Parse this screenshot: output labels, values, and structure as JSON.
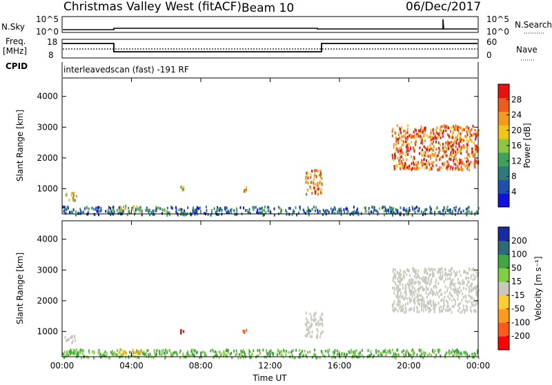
{
  "header": {
    "site": "Christmas Valley West (fitACF)",
    "beam": "Beam 10",
    "date": "06/Dec/2017"
  },
  "strips": {
    "nsky_label": "N.Sky",
    "nsky_ticks": [
      "10^5",
      "10^0"
    ],
    "nsearch_label": "N.Search",
    "nsearch_ticks": [
      "10^5",
      "10^0"
    ],
    "freq_label_1": "Freq.",
    "freq_label_2": "[MHz]",
    "freq_ticks": [
      "18",
      "8"
    ],
    "nave_label": "Nave",
    "nave_ticks": [
      "60",
      "0"
    ],
    "cpid_label": "CPID",
    "cpid_text": "interleavedscan (fast) -191 RF"
  },
  "colors": {
    "power_scale": [
      "#1010e0",
      "#1f4fb0",
      "#2e7a7a",
      "#3fa45a",
      "#8dc63f",
      "#f2c417",
      "#f59a1e",
      "#f25a1a",
      "#e81010"
    ],
    "velocity_scale": [
      "#ff0000",
      "#ff5a1a",
      "#ff9a1a",
      "#ffcc33",
      "#c8c8be",
      "#7fcf3f",
      "#3fa640",
      "#2f6a7a",
      "#1a2aa0"
    ],
    "ground_scatter": "#c8c8be"
  },
  "chart_data": [
    {
      "type": "heatmap",
      "title": "",
      "xlabel": "Time UT",
      "ylabel": "Slant Range [km]",
      "x_ticks": [
        "00:00",
        "04:00",
        "08:00",
        "12:00",
        "16:00",
        "20:00",
        "00:00"
      ],
      "xlim_hours": [
        0,
        24
      ],
      "y_ticks": [
        1000,
        2000,
        3000,
        4000
      ],
      "ylim": [
        180,
        4600
      ],
      "colorbar": {
        "label": "Power [dB]",
        "ticks": [
          4,
          8,
          12,
          16,
          20,
          24,
          28
        ],
        "range": [
          0,
          32
        ]
      },
      "features": [
        {
          "label": "near-range band",
          "t_start": 0.0,
          "t_end": 24.0,
          "r_start": 180,
          "r_end": 450,
          "value": 8
        },
        {
          "label": "early echo",
          "t_start": 0.1,
          "t_end": 0.8,
          "r_start": 650,
          "r_end": 900,
          "value": 20
        },
        {
          "label": "echo 04:00",
          "t_start": 3.2,
          "t_end": 4.5,
          "r_start": 280,
          "r_end": 480,
          "value": 18
        },
        {
          "label": "echo 06:50",
          "t_start": 6.8,
          "t_end": 7.0,
          "r_start": 950,
          "r_end": 1100,
          "value": 20
        },
        {
          "label": "echo 10:30",
          "t_start": 10.4,
          "t_end": 10.6,
          "r_start": 950,
          "r_end": 1100,
          "value": 22
        },
        {
          "label": "echo 14:30",
          "t_start": 14.0,
          "t_end": 15.0,
          "r_start": 850,
          "r_end": 1650,
          "value": 24
        },
        {
          "label": "far-range patch",
          "t_start": 19.0,
          "t_end": 24.0,
          "r_start": 1650,
          "r_end": 3100,
          "value": 26
        }
      ]
    },
    {
      "type": "heatmap",
      "title": "",
      "xlabel": "Time UT",
      "ylabel": "Slant Range [km]",
      "x_ticks": [
        "00:00",
        "04:00",
        "08:00",
        "12:00",
        "16:00",
        "20:00",
        "00:00"
      ],
      "xlim_hours": [
        0,
        24
      ],
      "y_ticks": [
        1000,
        2000,
        3000,
        4000
      ],
      "ylim": [
        180,
        4600
      ],
      "colorbar": {
        "label": "Velocity [m s⁻¹]",
        "ticks": [
          "200",
          "100",
          "50",
          "15",
          "-15",
          "-50",
          "-100",
          "-200"
        ]
      },
      "features": [
        {
          "label": "near-range band",
          "t_start": 0.0,
          "t_end": 24.0,
          "r_start": 180,
          "r_end": 450,
          "value": 50
        },
        {
          "label": "early ground scatter",
          "t_start": 0.1,
          "t_end": 0.8,
          "r_start": 650,
          "r_end": 900,
          "value": 0
        },
        {
          "label": "echo 04:00",
          "t_start": 3.2,
          "t_end": 4.5,
          "r_start": 280,
          "r_end": 480,
          "value": -50
        },
        {
          "label": "echo 06:50",
          "t_start": 6.8,
          "t_end": 7.0,
          "r_start": 950,
          "r_end": 1100,
          "value": -200
        },
        {
          "label": "echo 10:30",
          "t_start": 10.4,
          "t_end": 10.6,
          "r_start": 950,
          "r_end": 1100,
          "value": -150
        },
        {
          "label": "echo 14:30",
          "t_start": 14.0,
          "t_end": 15.0,
          "r_start": 850,
          "r_end": 1650,
          "value": 0
        },
        {
          "label": "far-range ground scatter",
          "t_start": 19.0,
          "t_end": 24.0,
          "r_start": 1650,
          "r_end": 3100,
          "value": 0
        }
      ]
    }
  ]
}
